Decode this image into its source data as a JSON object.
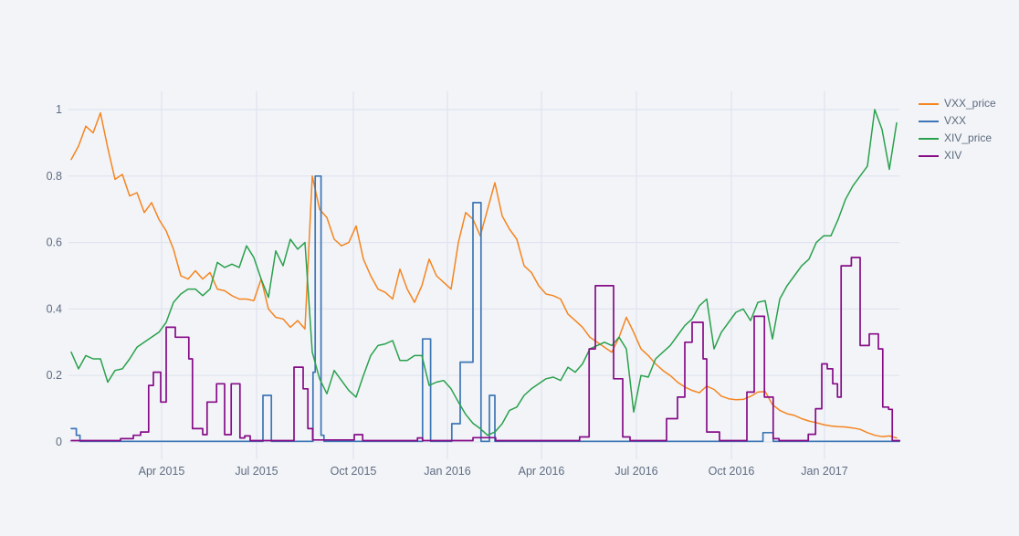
{
  "page": {
    "background_color": "#f2f4f8",
    "gridline_color": "#e0e4ee",
    "tick_label_color": "#5f6c80"
  },
  "chart_data": {
    "type": "line",
    "grid": true,
    "legend_position": "top-right",
    "x_axis": {
      "unit": "weeks since first sample (early 2015, weekly spacing)",
      "tick_labels": [
        "Apr 2015",
        "Jul 2015",
        "Oct 2015",
        "Jan 2016",
        "Apr 2016",
        "Jul 2016",
        "Oct 2016",
        "Jan 2017"
      ],
      "tick_weeks": [
        12.375,
        25.375,
        38.625,
        51.5,
        64.375,
        77.375,
        90.375,
        103.125
      ],
      "range_weeks": [
        0,
        113.4
      ]
    },
    "y_axis": {
      "tick_labels": [
        "0",
        "0.2",
        "0.4",
        "0.6",
        "0.8",
        "1"
      ],
      "tick_values": [
        0,
        0.2,
        0.4,
        0.6,
        0.8,
        1
      ],
      "range": [
        0,
        1
      ]
    },
    "series": [
      {
        "name": "VXX_price",
        "color": "#f5851f",
        "mode": "line",
        "weekly_values": [
          0.85,
          0.89,
          0.95,
          0.93,
          0.99,
          0.885,
          0.79,
          0.805,
          0.74,
          0.75,
          0.69,
          0.72,
          0.67,
          0.635,
          0.58,
          0.5,
          0.49,
          0.515,
          0.49,
          0.51,
          0.46,
          0.455,
          0.44,
          0.43,
          0.43,
          0.425,
          0.49,
          0.4,
          0.375,
          0.37,
          0.345,
          0.365,
          0.34,
          0.8,
          0.7,
          0.675,
          0.61,
          0.59,
          0.6,
          0.65,
          0.55,
          0.5,
          0.46,
          0.45,
          0.43,
          0.52,
          0.46,
          0.42,
          0.47,
          0.55,
          0.5,
          0.48,
          0.46,
          0.6,
          0.69,
          0.67,
          0.62,
          0.7,
          0.78,
          0.68,
          0.64,
          0.61,
          0.53,
          0.51,
          0.47,
          0.445,
          0.44,
          0.43,
          0.385,
          0.365,
          0.345,
          0.315,
          0.3,
          0.285,
          0.27,
          0.315,
          0.375,
          0.33,
          0.28,
          0.26,
          0.235,
          0.215,
          0.2,
          0.18,
          0.165,
          0.155,
          0.148,
          0.168,
          0.158,
          0.138,
          0.13,
          0.127,
          0.128,
          0.137,
          0.15,
          0.152,
          0.112,
          0.095,
          0.085,
          0.08,
          0.07,
          0.063,
          0.058,
          0.052,
          0.048,
          0.046,
          0.045,
          0.042,
          0.038,
          0.028,
          0.02,
          0.016,
          0.018,
          0.012
        ]
      },
      {
        "name": "VXX",
        "color": "#3d76b5",
        "mode": "step",
        "steps": [
          [
            0,
            0.04
          ],
          [
            0.7,
            0.02
          ],
          [
            1.2,
            0.002
          ],
          [
            26.25,
            0.14
          ],
          [
            27.4,
            0.002
          ],
          [
            33.1,
            0.21
          ],
          [
            33.4,
            0.8
          ],
          [
            34.2,
            0.02
          ],
          [
            34.6,
            0.002
          ],
          [
            48.1,
            0.31
          ],
          [
            49.2,
            0.002
          ],
          [
            52.1,
            0.055
          ],
          [
            53.25,
            0.24
          ],
          [
            55.0,
            0.72
          ],
          [
            56.1,
            0.002
          ],
          [
            57.25,
            0.14
          ],
          [
            58.0,
            0.002
          ],
          [
            94.7,
            0.028
          ],
          [
            96.1,
            0.002
          ],
          [
            113.4,
            0.002
          ]
        ]
      },
      {
        "name": "XIV_price",
        "color": "#2aa14c",
        "mode": "line",
        "weekly_values": [
          0.27,
          0.22,
          0.26,
          0.25,
          0.25,
          0.18,
          0.215,
          0.22,
          0.25,
          0.285,
          0.3,
          0.315,
          0.33,
          0.36,
          0.42,
          0.445,
          0.46,
          0.46,
          0.44,
          0.46,
          0.54,
          0.525,
          0.535,
          0.525,
          0.59,
          0.555,
          0.49,
          0.435,
          0.575,
          0.53,
          0.61,
          0.58,
          0.6,
          0.27,
          0.19,
          0.145,
          0.215,
          0.185,
          0.155,
          0.135,
          0.2,
          0.26,
          0.29,
          0.295,
          0.305,
          0.245,
          0.245,
          0.26,
          0.26,
          0.17,
          0.18,
          0.185,
          0.16,
          0.12,
          0.083,
          0.056,
          0.04,
          0.02,
          0.03,
          0.055,
          0.095,
          0.105,
          0.14,
          0.16,
          0.175,
          0.19,
          0.195,
          0.185,
          0.225,
          0.21,
          0.235,
          0.28,
          0.29,
          0.3,
          0.29,
          0.315,
          0.28,
          0.09,
          0.2,
          0.195,
          0.25,
          0.27,
          0.29,
          0.32,
          0.35,
          0.37,
          0.41,
          0.43,
          0.28,
          0.33,
          0.36,
          0.39,
          0.4,
          0.365,
          0.42,
          0.425,
          0.31,
          0.43,
          0.47,
          0.5,
          0.53,
          0.55,
          0.6,
          0.62,
          0.62,
          0.67,
          0.73,
          0.77,
          0.8,
          0.83,
          1.0,
          0.94,
          0.82,
          0.96
        ]
      },
      {
        "name": "XIV",
        "color": "#870c87",
        "mode": "step",
        "steps": [
          [
            0,
            0.004
          ],
          [
            6.75,
            0.01
          ],
          [
            8.5,
            0.02
          ],
          [
            9.5,
            0.03
          ],
          [
            10.6,
            0.17
          ],
          [
            11.25,
            0.21
          ],
          [
            12.25,
            0.12
          ],
          [
            13.0,
            0.345
          ],
          [
            14.25,
            0.315
          ],
          [
            16.1,
            0.25
          ],
          [
            16.6,
            0.04
          ],
          [
            18.0,
            0.022
          ],
          [
            18.6,
            0.12
          ],
          [
            19.9,
            0.175
          ],
          [
            21.0,
            0.022
          ],
          [
            21.9,
            0.175
          ],
          [
            23.1,
            0.012
          ],
          [
            23.75,
            0.018
          ],
          [
            24.5,
            0.004
          ],
          [
            30.5,
            0.225
          ],
          [
            31.75,
            0.16
          ],
          [
            32.4,
            0.04
          ],
          [
            33.05,
            0.006
          ],
          [
            38.75,
            0.022
          ],
          [
            39.9,
            0.004
          ],
          [
            47.4,
            0.012
          ],
          [
            48.1,
            0.004
          ],
          [
            55.0,
            0.013
          ],
          [
            58.1,
            0.004
          ],
          [
            69.6,
            0.015
          ],
          [
            70.9,
            0.28
          ],
          [
            71.75,
            0.47
          ],
          [
            74.25,
            0.19
          ],
          [
            75.5,
            0.015
          ],
          [
            76.5,
            0.004
          ],
          [
            81.5,
            0.07
          ],
          [
            83.0,
            0.135
          ],
          [
            84.0,
            0.3
          ],
          [
            85.0,
            0.36
          ],
          [
            86.5,
            0.25
          ],
          [
            87.0,
            0.03
          ],
          [
            88.75,
            0.004
          ],
          [
            92.5,
            0.15
          ],
          [
            93.5,
            0.378
          ],
          [
            94.9,
            0.135
          ],
          [
            96.1,
            0.01
          ],
          [
            96.9,
            0.004
          ],
          [
            100.9,
            0.023
          ],
          [
            101.9,
            0.1
          ],
          [
            102.75,
            0.235
          ],
          [
            103.5,
            0.22
          ],
          [
            104.25,
            0.175
          ],
          [
            104.9,
            0.135
          ],
          [
            105.4,
            0.53
          ],
          [
            106.8,
            0.555
          ],
          [
            108.0,
            0.29
          ],
          [
            109.25,
            0.325
          ],
          [
            110.5,
            0.28
          ],
          [
            111.1,
            0.105
          ],
          [
            111.9,
            0.098
          ],
          [
            112.4,
            0.004
          ],
          [
            113.4,
            0.004
          ]
        ]
      }
    ]
  }
}
